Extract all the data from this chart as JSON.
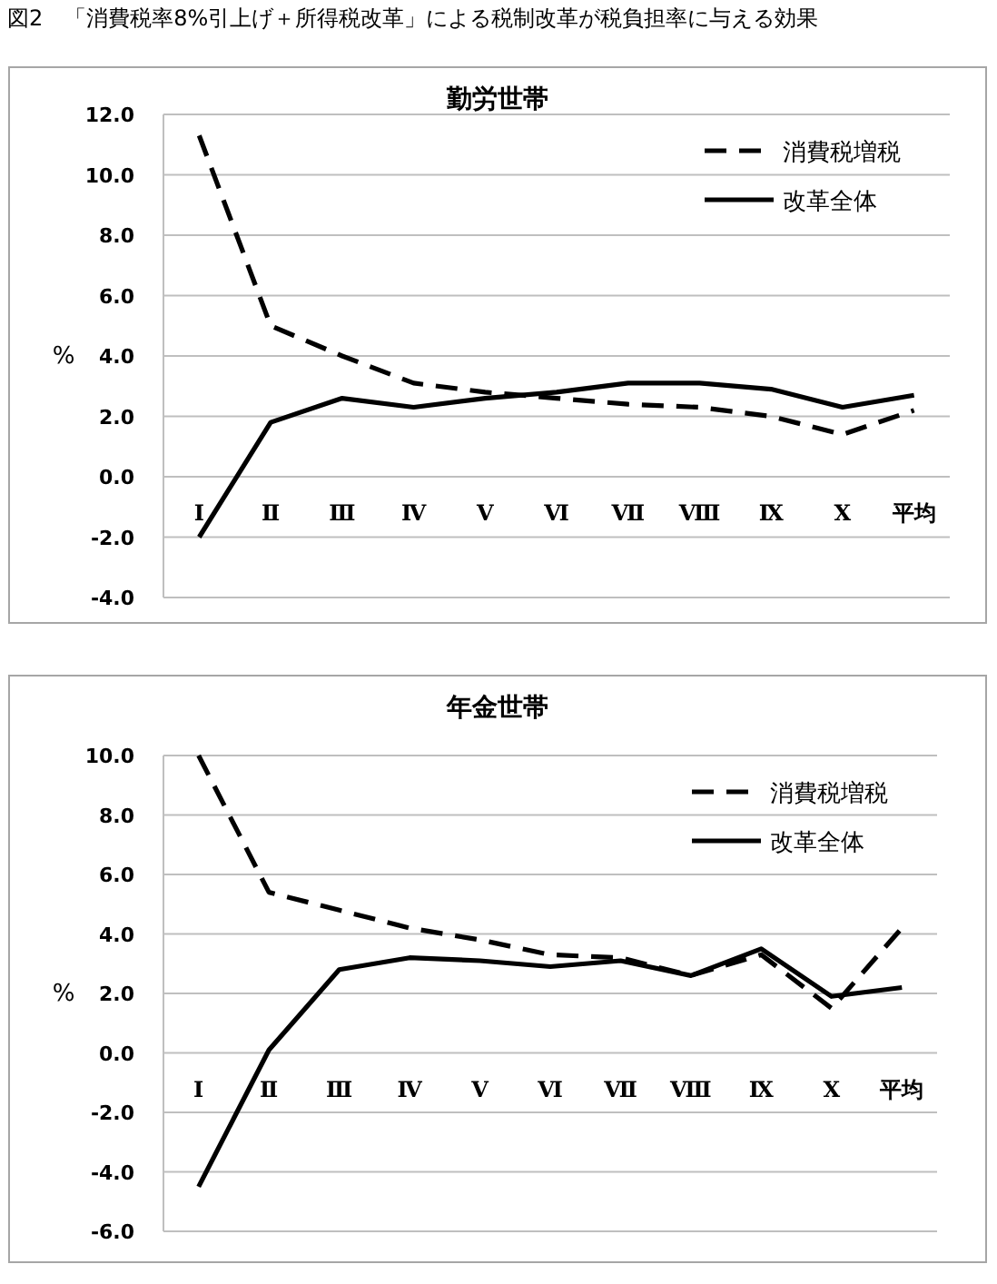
{
  "chart_data": [
    {
      "type": "line",
      "title": "勤労世帯",
      "ylabel": "%",
      "annotations": [
        "図2　「消費税率8%引上げ＋所得税改革」による税制改革が税負担率に与える効果"
      ],
      "categories": [
        "Ⅰ",
        "Ⅱ",
        "Ⅲ",
        "Ⅳ",
        "Ⅴ",
        "Ⅵ",
        "Ⅶ",
        "Ⅷ",
        "Ⅸ",
        "Ⅹ",
        "平均"
      ],
      "series": [
        {
          "name": "消費税増税",
          "color": "#000000",
          "line_style": "dashed",
          "values": [
            11.3,
            5.0,
            4.0,
            3.1,
            2.8,
            2.6,
            2.4,
            2.3,
            2.0,
            1.4,
            2.2
          ]
        },
        {
          "name": "改革全体",
          "color": "#000000",
          "line_style": "solid",
          "values": [
            -2.0,
            1.8,
            2.6,
            2.3,
            2.6,
            2.8,
            3.1,
            3.1,
            2.9,
            2.3,
            2.7
          ]
        }
      ],
      "ylim": [
        -4,
        12
      ],
      "yticks": [
        {
          "value": -4,
          "label": "-4.0"
        },
        {
          "value": -2,
          "label": "-2.0"
        },
        {
          "value": 0,
          "label": "0.0"
        },
        {
          "value": 2,
          "label": "2.0"
        },
        {
          "value": 4,
          "label": "4.0"
        },
        {
          "value": 6,
          "label": "6.0"
        },
        {
          "value": 8,
          "label": "8.0"
        },
        {
          "value": 10,
          "label": "10.0"
        },
        {
          "value": 12,
          "label": "12.0"
        }
      ],
      "grid": "y",
      "legend": "top right",
      "marker": "none"
    },
    {
      "type": "line",
      "title": "年金世帯",
      "ylabel": "%",
      "categories": [
        "Ⅰ",
        "Ⅱ",
        "Ⅲ",
        "Ⅳ",
        "Ⅴ",
        "Ⅵ",
        "Ⅶ",
        "Ⅷ",
        "Ⅸ",
        "Ⅹ",
        "平均"
      ],
      "series": [
        {
          "name": "消費税増税",
          "color": "#000000",
          "line_style": "dashed",
          "values": [
            10.0,
            5.4,
            4.8,
            4.2,
            3.8,
            3.3,
            3.2,
            2.6,
            3.3,
            1.5,
            4.2
          ]
        },
        {
          "name": "改革全体",
          "color": "#000000",
          "line_style": "solid",
          "values": [
            -4.5,
            0.1,
            2.8,
            3.2,
            3.1,
            2.9,
            3.1,
            2.6,
            3.5,
            1.9,
            2.2
          ]
        }
      ],
      "ylim": [
        -6,
        10
      ],
      "yticks": [
        {
          "value": -6,
          "label": "-6.0"
        },
        {
          "value": -4,
          "label": "-4.0"
        },
        {
          "value": -2,
          "label": "-2.0"
        },
        {
          "value": 0,
          "label": "0.0"
        },
        {
          "value": 2,
          "label": "2.0"
        },
        {
          "value": 4,
          "label": "4.0"
        },
        {
          "value": 6,
          "label": "6.0"
        },
        {
          "value": 8,
          "label": "8.0"
        },
        {
          "value": 10,
          "label": "10.0"
        }
      ],
      "grid": "y",
      "legend": "top right",
      "marker": "none"
    }
  ]
}
